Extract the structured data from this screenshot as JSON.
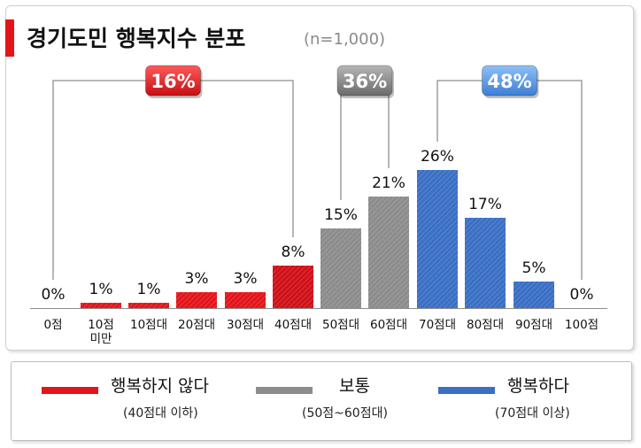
{
  "header": {
    "title": "경기도민 행복지수 분포",
    "subtitle": "(n=1,000)"
  },
  "chart_data": {
    "type": "bar",
    "categories": [
      "0점",
      "10점\n미만",
      "10점대",
      "20점대",
      "30점대",
      "40점대",
      "50점대",
      "60점대",
      "70점대",
      "80점대",
      "90점대",
      "100점"
    ],
    "values": [
      0,
      1,
      1,
      3,
      3,
      8,
      15,
      21,
      26,
      17,
      5,
      0
    ],
    "value_labels": [
      "0%",
      "1%",
      "1%",
      "3%",
      "3%",
      "8%",
      "15%",
      "21%",
      "26%",
      "17%",
      "5%",
      "0%"
    ],
    "unit": "%",
    "groups": [
      {
        "name": "행복하지 않다",
        "note": "(40점대 이하)",
        "total_label": "16%",
        "from": 0,
        "to": 5,
        "color": "#e3151a"
      },
      {
        "name": "보통",
        "note": "(50점~60점대)",
        "total_label": "36%",
        "from": 6,
        "to": 7,
        "color": "#8c8c8c"
      },
      {
        "name": "행복하다",
        "note": "(70점대 이상)",
        "total_label": "48%",
        "from": 8,
        "to": 11,
        "color": "#3a6fc4"
      }
    ],
    "grid": false,
    "legend_position": "bottom"
  },
  "colors": {
    "accent": "#e3151a",
    "red_bar": "#e3151a",
    "dark_red_bar": "#d01018",
    "gray_bar": "#8c8c8c",
    "blue_bar": "#3a6fc4",
    "bracket_line": "#8e8e8e"
  }
}
